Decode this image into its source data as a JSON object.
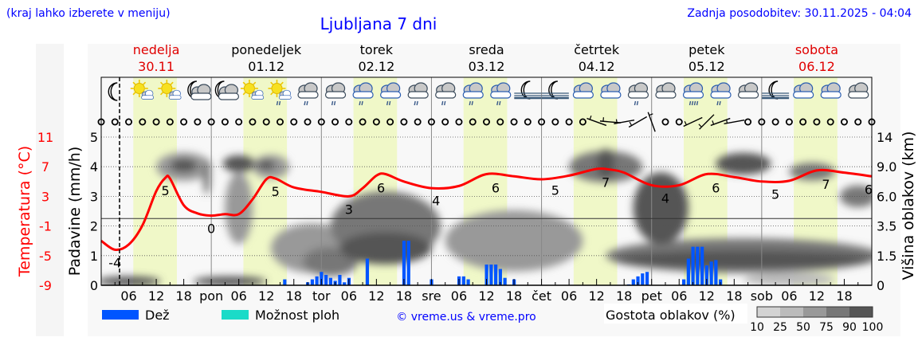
{
  "header": {
    "location_hint": "(kraj lahko izberete v meniju)",
    "title": "Ljubljana 7 dni",
    "updated": "Zadnja posodobitev: 30.11.2025 - 04:04"
  },
  "colors": {
    "title": "#0000ff",
    "temperature": "#ff0000",
    "rain": "#0055ff",
    "showers": "#1adbc8",
    "daylight": "#f0f8c8",
    "weekend": "#e00000"
  },
  "legend": {
    "rain_label": "Dež",
    "showers_label": "Možnost ploh",
    "copyright": "© vreme.us & vreme.pro",
    "cloud_density_label": "Gostota oblakov (%)",
    "cloud_density_ticks": [
      "10",
      "25",
      "50",
      "75",
      "90",
      "100"
    ]
  },
  "chart_data": {
    "type": "line",
    "title": "Ljubljana 7 dni",
    "days": [
      {
        "name": "nedelja",
        "date": "30.11",
        "weekend": true
      },
      {
        "name": "ponedeljek",
        "date": "01.12",
        "weekend": false
      },
      {
        "name": "torek",
        "date": "02.12",
        "weekend": false
      },
      {
        "name": "sreda",
        "date": "03.12",
        "weekend": false
      },
      {
        "name": "četrtek",
        "date": "04.12",
        "weekend": false
      },
      {
        "name": "petek",
        "date": "05.12",
        "weekend": false
      },
      {
        "name": "sobota",
        "date": "06.12",
        "weekend": true
      }
    ],
    "x_tick_labels": [
      "06",
      "12",
      "18",
      "pon",
      "06",
      "12",
      "18",
      "tor",
      "06",
      "12",
      "18",
      "sre",
      "06",
      "12",
      "18",
      "čet",
      "06",
      "12",
      "18",
      "pet",
      "06",
      "12",
      "18",
      "sob",
      "06",
      "12",
      "18"
    ],
    "now_hour": 4,
    "y_left_temperature": {
      "label": "Temperatura (°C)",
      "ticks": [
        "11",
        "7",
        "3",
        "-1",
        "-5",
        "-9"
      ],
      "range": [
        -9,
        11
      ]
    },
    "y_left_precip": {
      "label": "Padavine (mm/h)",
      "ticks": [
        "5",
        "4",
        "3",
        "2",
        "1",
        "0"
      ],
      "range": [
        0,
        5
      ]
    },
    "y_right_cloud_height": {
      "label": "Višina oblakov (km)",
      "ticks": [
        "14",
        "9.0",
        "6.0",
        "3.5",
        "1.5",
        "0"
      ]
    },
    "temperature": {
      "hours": [
        0,
        3,
        6,
        9,
        12,
        14,
        15,
        18,
        21,
        24,
        27,
        30,
        33,
        36,
        38,
        42,
        48,
        54,
        57,
        60,
        62,
        66,
        72,
        78,
        84,
        90,
        96,
        102,
        108,
        111,
        114,
        120,
        126,
        132,
        138,
        144,
        150,
        156,
        162,
        168
      ],
      "values": [
        -3.0,
        -4.2,
        -3.5,
        -0.9,
        3.7,
        5.5,
        5.4,
        1.8,
        0.7,
        0.4,
        0.6,
        0.6,
        2.6,
        5.3,
        5.4,
        4.2,
        3.6,
        3.0,
        4.1,
        5.8,
        6.0,
        5.0,
        4.1,
        4.4,
        6.0,
        5.7,
        5.3,
        5.8,
        6.7,
        6.6,
        6.2,
        4.5,
        4.5,
        6.0,
        5.6,
        5.0,
        5.1,
        6.5,
        6.2,
        5.7
      ]
    },
    "temperature_labels": [
      {
        "hour": 3,
        "text": "-4"
      },
      {
        "hour": 14,
        "text": "5"
      },
      {
        "hour": 24,
        "text": "0"
      },
      {
        "hour": 38,
        "text": "5"
      },
      {
        "hour": 54,
        "text": "3"
      },
      {
        "hour": 61,
        "text": "6"
      },
      {
        "hour": 73,
        "text": "4"
      },
      {
        "hour": 86,
        "text": "6"
      },
      {
        "hour": 99,
        "text": "5"
      },
      {
        "hour": 110,
        "text": "7"
      },
      {
        "hour": 123,
        "text": "4"
      },
      {
        "hour": 134,
        "text": "6"
      },
      {
        "hour": 147,
        "text": "5"
      },
      {
        "hour": 158,
        "text": "7"
      },
      {
        "hour": 168,
        "text": "6"
      }
    ],
    "rain_mm_h": [
      [
        40,
        0.2
      ],
      [
        45,
        0.1
      ],
      [
        46,
        0.2
      ],
      [
        47,
        0.3
      ],
      [
        48,
        0.45
      ],
      [
        49,
        0.35
      ],
      [
        50,
        0.25
      ],
      [
        51,
        0.15
      ],
      [
        52,
        0.35
      ],
      [
        53,
        0.1
      ],
      [
        54,
        0.25
      ],
      [
        58,
        0.9
      ],
      [
        66,
        1.5
      ],
      [
        67,
        1.5
      ],
      [
        72,
        0.2
      ],
      [
        78,
        0.3
      ],
      [
        79,
        0.3
      ],
      [
        80,
        0.2
      ],
      [
        84,
        0.7
      ],
      [
        85,
        0.7
      ],
      [
        86,
        0.7
      ],
      [
        87,
        0.55
      ],
      [
        88,
        0.25
      ],
      [
        90,
        0.2
      ],
      [
        115,
        0.03
      ],
      [
        116,
        0.2
      ],
      [
        117,
        0.3
      ],
      [
        118,
        0.4
      ],
      [
        119,
        0.45
      ],
      [
        127,
        0.2
      ],
      [
        128,
        0.9
      ],
      [
        129,
        1.3
      ],
      [
        130,
        1.3
      ],
      [
        131,
        1.3
      ],
      [
        132,
        0.67
      ],
      [
        133,
        0.8
      ],
      [
        134,
        0.85
      ],
      [
        135,
        0.2
      ]
    ],
    "cloud_density": [
      {
        "hour": 6,
        "km": 0.2,
        "spread_h": 7,
        "spread_km": 0.3,
        "density": 90
      },
      {
        "hour": 18,
        "km": 9.0,
        "spread_h": 6,
        "spread_km": 1.8,
        "density": 50
      },
      {
        "hour": 18,
        "km": 9.2,
        "spread_h": 3,
        "spread_km": 0.9,
        "density": 90
      },
      {
        "hour": 23,
        "km": 8.0,
        "spread_h": 0.8,
        "spread_km": 2.0,
        "density": 75
      },
      {
        "hour": 28,
        "km": 0.2,
        "spread_h": 8,
        "spread_km": 0.3,
        "density": 90
      },
      {
        "hour": 30,
        "km": 5.0,
        "spread_h": 3,
        "spread_km": 3.0,
        "density": 50
      },
      {
        "hour": 30,
        "km": 9.5,
        "spread_h": 3.5,
        "spread_km": 1.2,
        "density": 90
      },
      {
        "hour": 37,
        "km": 9.0,
        "spread_h": 4,
        "spread_km": 1.5,
        "density": 50
      },
      {
        "hour": 36,
        "km": 9.3,
        "spread_h": 2,
        "spread_km": 0.7,
        "density": 90
      },
      {
        "hour": 46,
        "km": 2.0,
        "spread_h": 9,
        "spread_km": 1.5,
        "density": 50
      },
      {
        "hour": 50,
        "km": 1.2,
        "spread_h": 6,
        "spread_km": 0.8,
        "density": 75
      },
      {
        "hour": 62,
        "km": 3.5,
        "spread_h": 12,
        "spread_km": 2.5,
        "density": 75
      },
      {
        "hour": 62,
        "km": 2.0,
        "spread_h": 10,
        "spread_km": 1.0,
        "density": 90
      },
      {
        "hour": 90,
        "km": 2.5,
        "spread_h": 15,
        "spread_km": 2.0,
        "density": 50
      },
      {
        "hour": 110,
        "km": 9.0,
        "spread_h": 8,
        "spread_km": 2.0,
        "density": 75
      },
      {
        "hour": 110,
        "km": 9.5,
        "spread_h": 2,
        "spread_km": 2.0,
        "density": 90
      },
      {
        "hour": 122,
        "km": 5.0,
        "spread_h": 6,
        "spread_km": 3.0,
        "density": 90
      },
      {
        "hour": 140,
        "km": 9.5,
        "spread_h": 6,
        "spread_km": 1.5,
        "density": 90
      },
      {
        "hour": 140,
        "km": 1.5,
        "spread_h": 30,
        "spread_km": 1.0,
        "density": 75
      },
      {
        "hour": 140,
        "km": 1.3,
        "spread_h": 28,
        "spread_km": 0.5,
        "density": 90
      },
      {
        "hour": 150,
        "km": 0.3,
        "spread_h": 10,
        "spread_km": 0.4,
        "density": 25
      },
      {
        "hour": 155,
        "km": 8.5,
        "spread_h": 5,
        "spread_km": 1.0,
        "density": 75
      },
      {
        "hour": 165,
        "km": 6.0,
        "spread_h": 4,
        "spread_km": 1.0,
        "density": 75
      }
    ],
    "weather_icons": [
      {
        "hour": 3,
        "icon": "moon-clear"
      },
      {
        "hour": 9,
        "icon": "sun-cloud"
      },
      {
        "hour": 15,
        "icon": "sun-cloud"
      },
      {
        "hour": 21,
        "icon": "moon-cloud"
      },
      {
        "hour": 27,
        "icon": "moon-cloud"
      },
      {
        "hour": 33,
        "icon": "sun-cloud"
      },
      {
        "hour": 39,
        "icon": "sun-cloud-rain"
      },
      {
        "hour": 45,
        "icon": "cloudy-rain"
      },
      {
        "hour": 51,
        "icon": "cloudy-rain"
      },
      {
        "hour": 57,
        "icon": "overcast-rain"
      },
      {
        "hour": 63,
        "icon": "overcast-rain"
      },
      {
        "hour": 69,
        "icon": "cloudy-rain"
      },
      {
        "hour": 75,
        "icon": "cloudy-rain"
      },
      {
        "hour": 81,
        "icon": "overcast-rain"
      },
      {
        "hour": 87,
        "icon": "overcast-rain"
      },
      {
        "hour": 93,
        "icon": "moon-fog"
      },
      {
        "hour": 99,
        "icon": "moon-fog"
      },
      {
        "hour": 105,
        "icon": "overcast"
      },
      {
        "hour": 111,
        "icon": "overcast"
      },
      {
        "hour": 117,
        "icon": "cloudy-rain"
      },
      {
        "hour": 123,
        "icon": "cloudy"
      },
      {
        "hour": 129,
        "icon": "overcast-heavy-rain"
      },
      {
        "hour": 135,
        "icon": "overcast-rain"
      },
      {
        "hour": 141,
        "icon": "cloudy"
      },
      {
        "hour": 147,
        "icon": "moon-fog"
      },
      {
        "hour": 153,
        "icon": "overcast"
      },
      {
        "hour": 159,
        "icon": "overcast"
      },
      {
        "hour": 165,
        "icon": "cloudy"
      }
    ],
    "wind": {
      "interval_h": 3,
      "calm_symbol": "circle",
      "barbs": [
        {
          "hour": 108,
          "dir_deg": 110
        },
        {
          "hour": 111,
          "dir_deg": 95
        },
        {
          "hour": 114,
          "dir_deg": 80
        },
        {
          "hour": 117,
          "dir_deg": 60
        },
        {
          "hour": 120,
          "dir_deg": 160
        },
        {
          "hour": 129,
          "dir_deg": 65
        },
        {
          "hour": 132,
          "dir_deg": 45
        },
        {
          "hour": 135,
          "dir_deg": 70
        },
        {
          "hour": 138,
          "dir_deg": 80
        }
      ]
    },
    "daylight_hours": [
      7,
      16.5
    ],
    "zero_degree_line": true,
    "grid": true
  }
}
